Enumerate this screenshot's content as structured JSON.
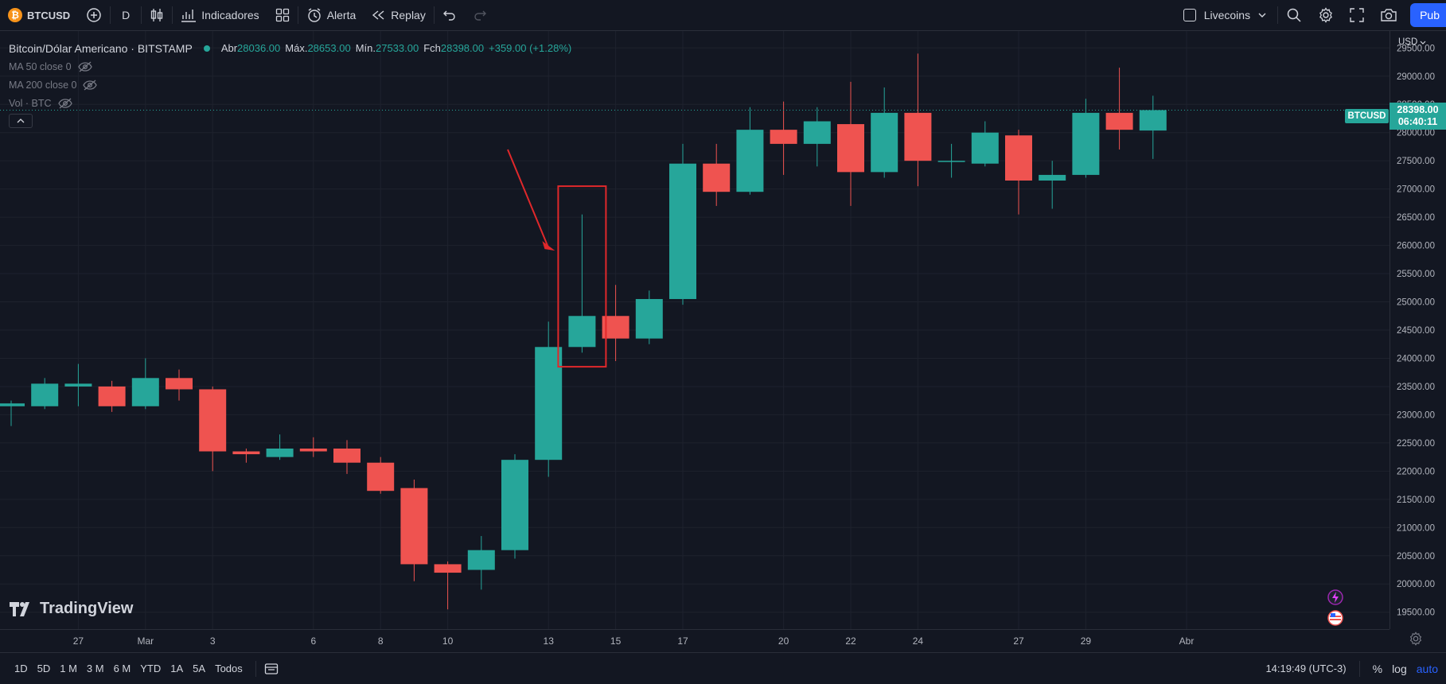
{
  "toolbar": {
    "symbol": "BTCUSD",
    "interval": "D",
    "indicators_label": "Indicadores",
    "alert_label": "Alerta",
    "replay_label": "Replay",
    "layout_name": "Livecoins",
    "publish_label": "Pub"
  },
  "legend": {
    "title": "Bitcoin/Dólar Americano · BITSTAMP",
    "open_label": "Abr",
    "open": "28036.00",
    "high_label": "Máx.",
    "high": "28653.00",
    "low_label": "Mín.",
    "low": "27533.00",
    "close_label": "Fch",
    "close": "28398.00",
    "change": "+359.00 (+1.28%)",
    "indicators": [
      "MA 50 close 0",
      "MA 200 close 0",
      "Vol · BTC"
    ]
  },
  "price_axis": {
    "currency": "USD",
    "current_price": "28398.00",
    "countdown": "06:40:11",
    "symbol_tag": "BTCUSD"
  },
  "bottom": {
    "ranges": [
      "1D",
      "5D",
      "1 M",
      "3 M",
      "6 M",
      "YTD",
      "1A",
      "5A",
      "Todos"
    ],
    "clock": "14:19:49 (UTC-3)",
    "percent_label": "%",
    "log_label": "log",
    "auto_label": "auto"
  },
  "watermark": "TradingView",
  "colors": {
    "up": "#26a69a",
    "down": "#ef5350",
    "annotation": "#e0282b",
    "background": "#131722"
  },
  "chart_data": {
    "type": "candlestick",
    "ylim": [
      19200,
      29800
    ],
    "yticks": [
      19500,
      20000,
      20500,
      21000,
      21500,
      22000,
      22500,
      23000,
      23500,
      24000,
      24500,
      25000,
      25500,
      26000,
      26500,
      27000,
      27500,
      28000,
      28500,
      29000,
      29500
    ],
    "xticks": [
      {
        "label": "27",
        "index": 2
      },
      {
        "label": "Mar",
        "index": 4
      },
      {
        "label": "3",
        "index": 6
      },
      {
        "label": "6",
        "index": 9
      },
      {
        "label": "8",
        "index": 11
      },
      {
        "label": "10",
        "index": 13
      },
      {
        "label": "13",
        "index": 16
      },
      {
        "label": "15",
        "index": 18
      },
      {
        "label": "17",
        "index": 20
      },
      {
        "label": "20",
        "index": 23
      },
      {
        "label": "22",
        "index": 25
      },
      {
        "label": "24",
        "index": 27
      },
      {
        "label": "27",
        "index": 30
      },
      {
        "label": "29",
        "index": 32
      },
      {
        "label": "Abr",
        "index": 35
      }
    ],
    "candles": [
      {
        "o": 23150,
        "h": 23250,
        "l": 22800,
        "c": 23200
      },
      {
        "o": 23150,
        "h": 23650,
        "l": 23100,
        "c": 23550
      },
      {
        "o": 23500,
        "h": 23900,
        "l": 23150,
        "c": 23550
      },
      {
        "o": 23500,
        "h": 23600,
        "l": 23050,
        "c": 23150
      },
      {
        "o": 23150,
        "h": 24000,
        "l": 23100,
        "c": 23650
      },
      {
        "o": 23650,
        "h": 23800,
        "l": 23250,
        "c": 23450
      },
      {
        "o": 23450,
        "h": 23500,
        "l": 22000,
        "c": 22350
      },
      {
        "o": 22350,
        "h": 22400,
        "l": 22150,
        "c": 22300
      },
      {
        "o": 22250,
        "h": 22650,
        "l": 22200,
        "c": 22400
      },
      {
        "o": 22400,
        "h": 22600,
        "l": 22250,
        "c": 22350
      },
      {
        "o": 22400,
        "h": 22550,
        "l": 21950,
        "c": 22150
      },
      {
        "o": 22150,
        "h": 22250,
        "l": 21600,
        "c": 21650
      },
      {
        "o": 21700,
        "h": 21850,
        "l": 20050,
        "c": 20350
      },
      {
        "o": 20350,
        "h": 20400,
        "l": 19550,
        "c": 20200
      },
      {
        "o": 20250,
        "h": 20850,
        "l": 19900,
        "c": 20600
      },
      {
        "o": 20600,
        "h": 22300,
        "l": 20450,
        "c": 22200
      },
      {
        "o": 22200,
        "h": 24650,
        "l": 21900,
        "c": 24200
      },
      {
        "o": 24200,
        "h": 26550,
        "l": 24100,
        "c": 24750
      },
      {
        "o": 24750,
        "h": 25300,
        "l": 23950,
        "c": 24350
      },
      {
        "o": 24350,
        "h": 25200,
        "l": 24250,
        "c": 25050
      },
      {
        "o": 25050,
        "h": 27800,
        "l": 24950,
        "c": 27450
      },
      {
        "o": 27450,
        "h": 27800,
        "l": 26700,
        "c": 26950
      },
      {
        "o": 26950,
        "h": 28450,
        "l": 26900,
        "c": 28050
      },
      {
        "o": 28050,
        "h": 28550,
        "l": 27250,
        "c": 27800
      },
      {
        "o": 27800,
        "h": 28450,
        "l": 27400,
        "c": 28200
      },
      {
        "o": 28150,
        "h": 28900,
        "l": 26700,
        "c": 27300
      },
      {
        "o": 27300,
        "h": 28800,
        "l": 27200,
        "c": 28350
      },
      {
        "o": 28350,
        "h": 29400,
        "l": 27050,
        "c": 27500
      },
      {
        "o": 27500,
        "h": 27800,
        "l": 27200,
        "c": 27500
      },
      {
        "o": 27450,
        "h": 28200,
        "l": 27400,
        "c": 28000
      },
      {
        "o": 27950,
        "h": 28050,
        "l": 26550,
        "c": 27150
      },
      {
        "o": 27150,
        "h": 27500,
        "l": 26650,
        "c": 27250
      },
      {
        "o": 27250,
        "h": 28600,
        "l": 27200,
        "c": 28350
      },
      {
        "o": 28350,
        "h": 29150,
        "l": 27700,
        "c": 28050
      },
      {
        "o": 28036,
        "h": 28653,
        "l": 27533,
        "c": 28398
      }
    ]
  }
}
